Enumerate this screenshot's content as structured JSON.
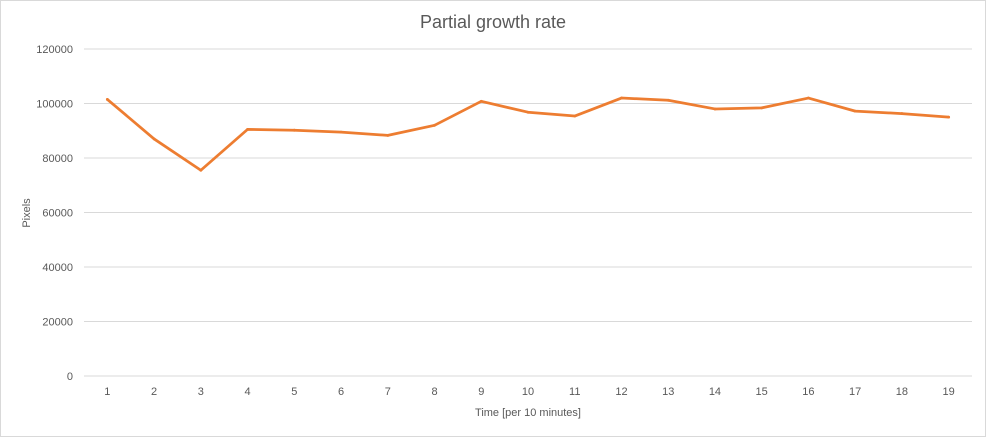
{
  "chart_data": {
    "type": "line",
    "title": "Partial  growth rate",
    "xlabel": "Time [per 10 minutes]",
    "ylabel": "Pixels",
    "categories": [
      "1",
      "2",
      "3",
      "4",
      "5",
      "6",
      "7",
      "8",
      "9",
      "10",
      "11",
      "12",
      "13",
      "14",
      "15",
      "16",
      "17",
      "18",
      "19"
    ],
    "series": [
      {
        "color": "#ed7d31",
        "values": [
          101500,
          87000,
          75500,
          90500,
          90200,
          89500,
          88300,
          92000,
          100800,
          96800,
          95400,
          102000,
          101200,
          98000,
          98400,
          102000,
          97200,
          96300,
          95000
        ]
      }
    ],
    "ylim": [
      0,
      120000
    ],
    "yticks": [
      "0",
      "20000",
      "40000",
      "60000",
      "80000",
      "100000",
      "120000"
    ],
    "grid": true,
    "legend": "none"
  }
}
